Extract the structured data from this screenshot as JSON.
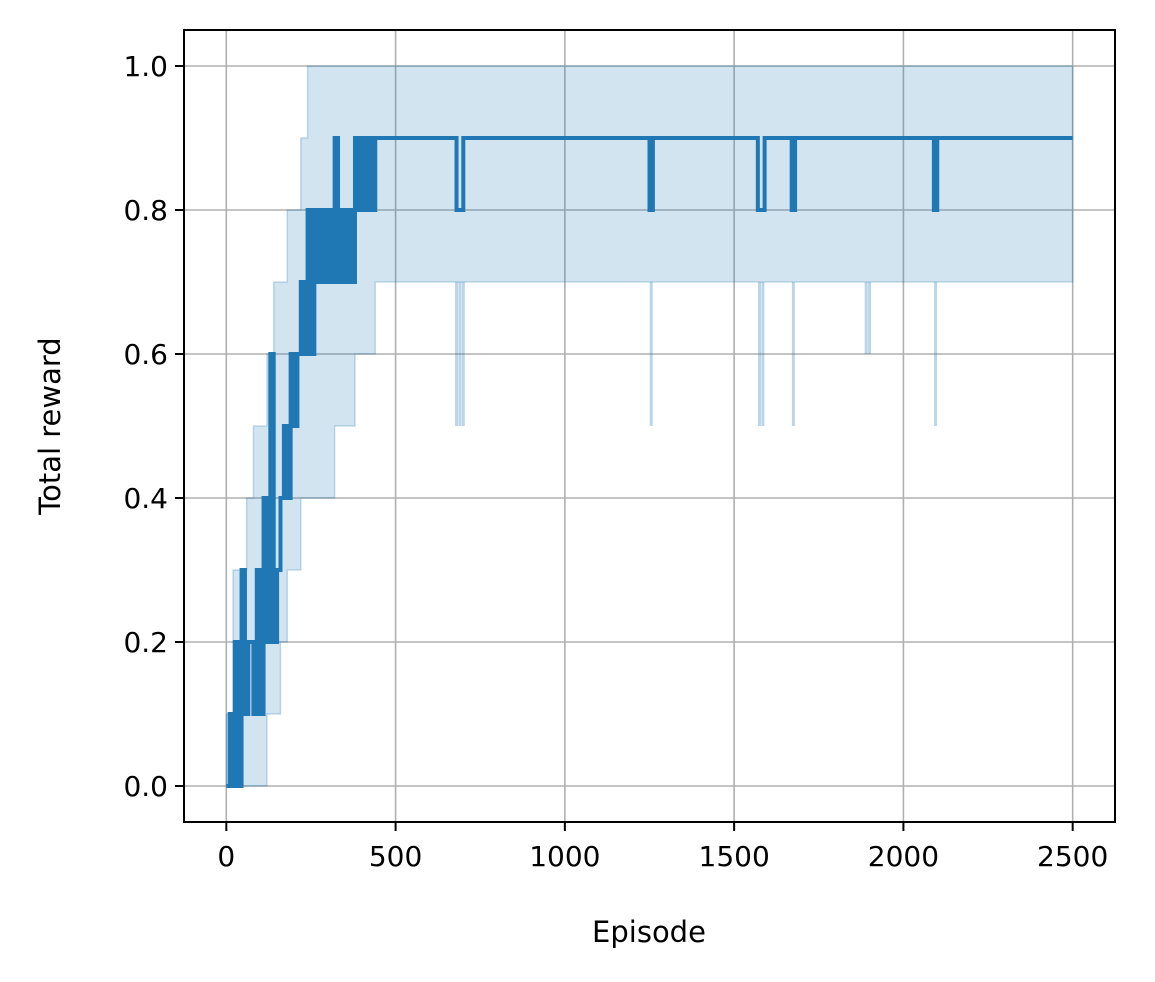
{
  "chart_data": {
    "type": "line",
    "title": "",
    "xlabel": "Episode",
    "ylabel": "Total reward",
    "xlim": [
      -125,
      2625
    ],
    "ylim": [
      -0.05,
      1.05
    ],
    "xticks": [
      0,
      500,
      1000,
      1500,
      2000,
      2500
    ],
    "xtick_labels": [
      "0",
      "500",
      "1000",
      "1500",
      "2000",
      "2500"
    ],
    "yticks": [
      0.0,
      0.2,
      0.4,
      0.6,
      0.8,
      1.0
    ],
    "ytick_labels": [
      "0.0",
      "0.2",
      "0.4",
      "0.6",
      "0.8",
      "1.0"
    ],
    "grid": true,
    "colors": {
      "line": "#1f77b4",
      "band": "#1f77b4",
      "grid": "#b0b0b0"
    },
    "series": [
      {
        "x": [
          0,
          10,
          20,
          25,
          35,
          45,
          55,
          65,
          80,
          90,
          100,
          110,
          120,
          130,
          140,
          150,
          160,
          170,
          180,
          190,
          200,
          210,
          220,
          230,
          240,
          250,
          260,
          270,
          280,
          290,
          300,
          310,
          320,
          330,
          340,
          350,
          360,
          370,
          380,
          390,
          400,
          410,
          420,
          430,
          440,
          450,
          680,
          690,
          700,
          710,
          1250,
          1260,
          1570,
          1580,
          1590,
          1670,
          1680,
          2090,
          2100,
          2500
        ],
        "values": [
          0.0,
          0.1,
          0.0,
          0.2,
          0.0,
          0.3,
          0.1,
          0.2,
          0.1,
          0.3,
          0.1,
          0.4,
          0.2,
          0.6,
          0.2,
          0.3,
          0.4,
          0.5,
          0.4,
          0.6,
          0.5,
          0.6,
          0.7,
          0.6,
          0.8,
          0.6,
          0.8,
          0.7,
          0.8,
          0.7,
          0.8,
          0.7,
          0.9,
          0.7,
          0.8,
          0.7,
          0.8,
          0.7,
          0.9,
          0.8,
          0.9,
          0.8,
          0.9,
          0.8,
          0.9,
          0.9,
          0.8,
          0.8,
          0.9,
          0.9,
          0.8,
          0.9,
          0.8,
          0.8,
          0.9,
          0.8,
          0.9,
          0.8,
          0.9,
          0.9
        ]
      }
    ],
    "band": {
      "x": [
        0,
        20,
        40,
        60,
        80,
        100,
        120,
        140,
        160,
        180,
        200,
        220,
        240,
        260,
        280,
        300,
        320,
        340,
        360,
        380,
        400,
        420,
        440,
        460,
        2500
      ],
      "lower": [
        0.0,
        0.0,
        0.0,
        0.0,
        0.0,
        0.0,
        0.0,
        0.1,
        0.1,
        0.2,
        0.3,
        0.3,
        0.4,
        0.4,
        0.4,
        0.4,
        0.4,
        0.5,
        0.5,
        0.5,
        0.6,
        0.6,
        0.6,
        0.7,
        0.7
      ],
      "upper": [
        0.1,
        0.3,
        0.3,
        0.4,
        0.5,
        0.5,
        0.6,
        0.7,
        0.7,
        0.8,
        0.8,
        0.9,
        1.0,
        1.0,
        1.0,
        1.0,
        1.0,
        1.0,
        1.0,
        1.0,
        1.0,
        1.0,
        1.0,
        1.0,
        1.0
      ]
    },
    "band_spikes": [
      {
        "x": 680,
        "lower": 0.5,
        "upper": 0.7
      },
      {
        "x": 690,
        "lower": 0.5,
        "upper": 0.7
      },
      {
        "x": 700,
        "lower": 0.5,
        "upper": 0.7
      },
      {
        "x": 1255,
        "lower": 0.5,
        "upper": 0.7
      },
      {
        "x": 1575,
        "lower": 0.5,
        "upper": 0.7
      },
      {
        "x": 1585,
        "lower": 0.5,
        "upper": 0.7
      },
      {
        "x": 1675,
        "lower": 0.5,
        "upper": 0.7
      },
      {
        "x": 1890,
        "lower": 0.6,
        "upper": 0.7
      },
      {
        "x": 1900,
        "lower": 0.6,
        "upper": 0.7
      },
      {
        "x": 2095,
        "lower": 0.5,
        "upper": 0.7
      }
    ]
  }
}
